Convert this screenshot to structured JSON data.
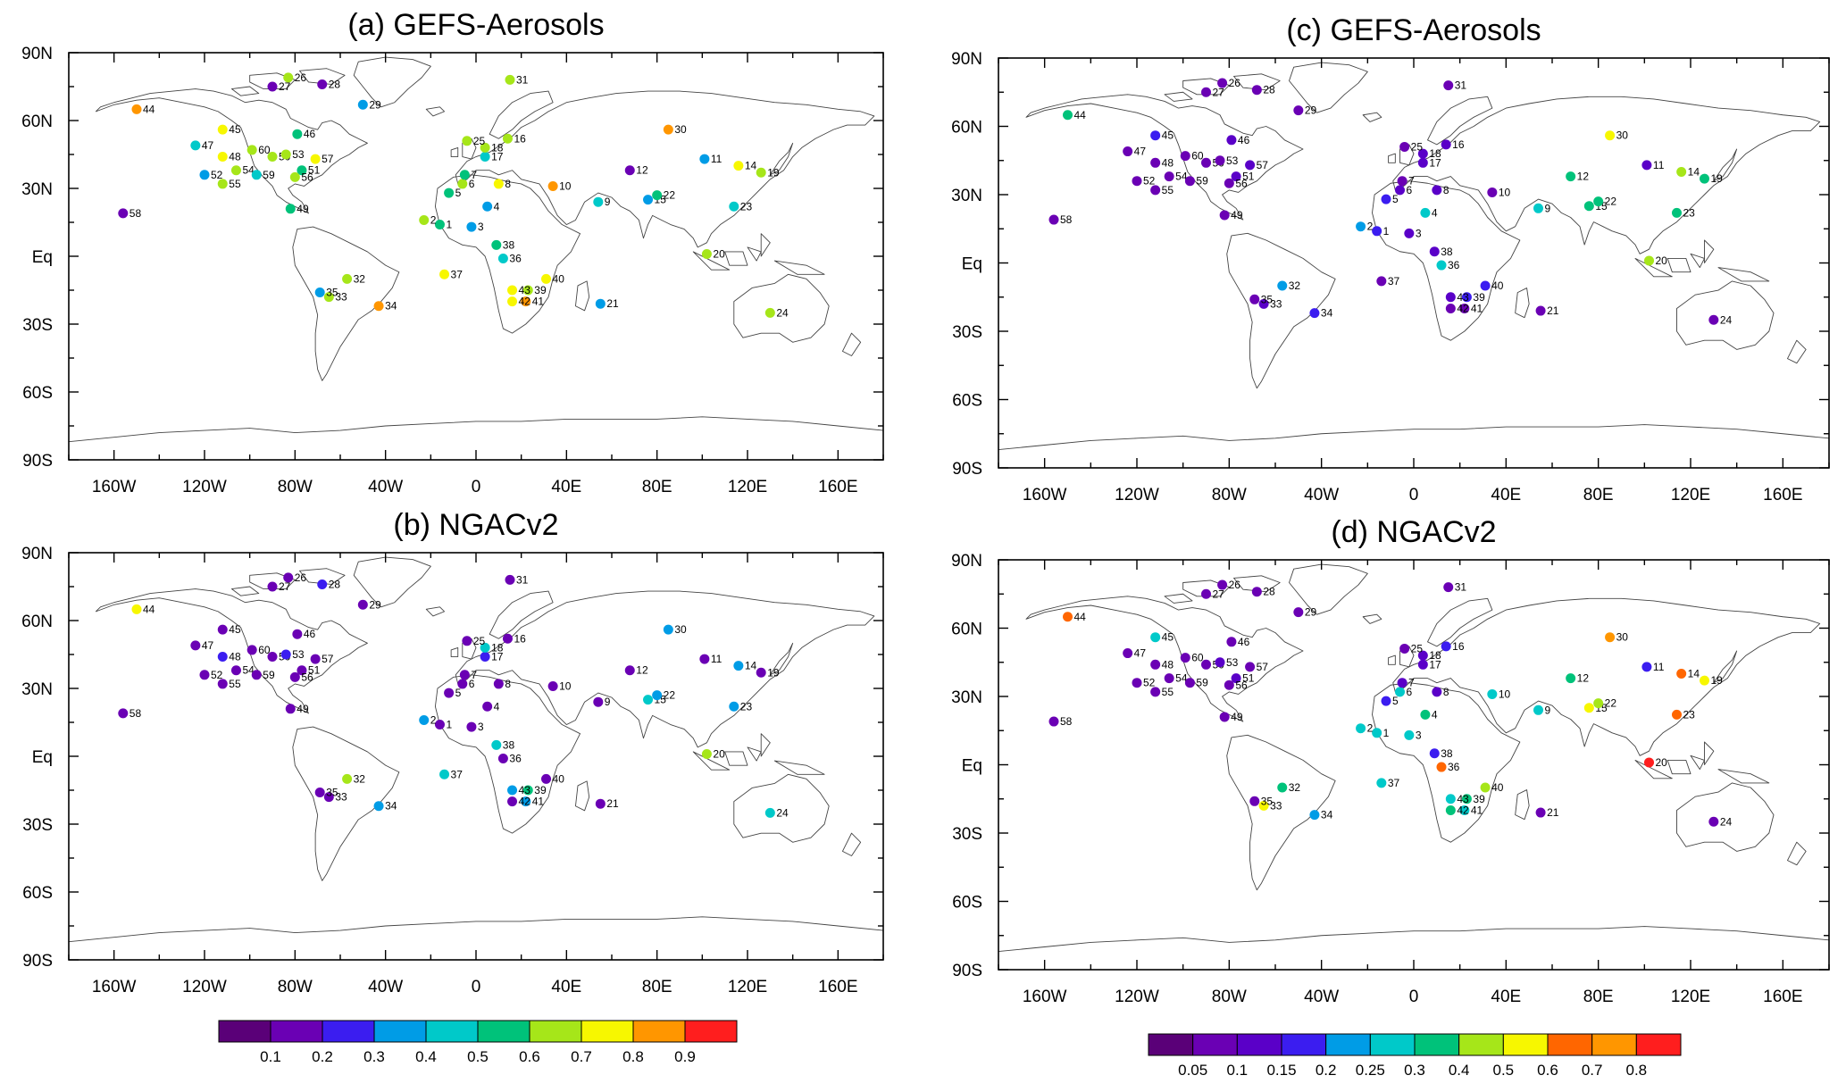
{
  "colors": {
    "scale_a": [
      "#5a0078",
      "#6a00b4",
      "#3b1df0",
      "#009ce6",
      "#00c9c9",
      "#00c27a",
      "#a6e619",
      "#f7f700",
      "#ff9600",
      "#ff1e1e"
    ],
    "scale_b": [
      "#5a0078",
      "#6a00b4",
      "#5a00c8",
      "#3b1df0",
      "#009ce6",
      "#00c9c9",
      "#00c27a",
      "#a6e619",
      "#f7f700",
      "#ff6600",
      "#ff9600",
      "#ff1e1e"
    ],
    "coast": "#444444"
  },
  "axes": {
    "x_ticks": [
      "160W",
      "120W",
      "80W",
      "40W",
      "0",
      "40E",
      "80E",
      "120E",
      "160E"
    ],
    "x_values": [
      -160,
      -120,
      -80,
      -40,
      0,
      40,
      80,
      120,
      160
    ],
    "y_ticks": [
      "90N",
      "60N",
      "30N",
      "Eq",
      "30S",
      "60S",
      "90S"
    ],
    "y_values": [
      90,
      60,
      30,
      0,
      -30,
      -60,
      -90
    ],
    "xlim": [
      -180,
      180
    ],
    "ylim": [
      -90,
      90
    ]
  },
  "colorbars": [
    {
      "labels": [
        "0.1",
        "0.2",
        "0.3",
        "0.4",
        "0.5",
        "0.6",
        "0.7",
        "0.8",
        "0.9"
      ],
      "scale": "scale_a"
    },
    {
      "labels": [
        "0.05",
        "0.1",
        "0.15",
        "0.2",
        "0.25",
        "0.3",
        "0.4",
        "0.5",
        "0.6",
        "0.7",
        "0.8"
      ],
      "scale": "scale_b"
    }
  ],
  "stations": [
    {
      "id": "1",
      "lon": -16,
      "lat": 14
    },
    {
      "id": "2",
      "lon": -23,
      "lat": 16
    },
    {
      "id": "3",
      "lon": -2,
      "lat": 13
    },
    {
      "id": "4",
      "lon": 5,
      "lat": 22
    },
    {
      "id": "5",
      "lon": -12,
      "lat": 28
    },
    {
      "id": "6",
      "lon": -6,
      "lat": 32
    },
    {
      "id": "7",
      "lon": -5,
      "lat": 36
    },
    {
      "id": "8",
      "lon": 10,
      "lat": 32
    },
    {
      "id": "9",
      "lon": 54,
      "lat": 24
    },
    {
      "id": "10",
      "lon": 34,
      "lat": 31
    },
    {
      "id": "11",
      "lon": 101,
      "lat": 43
    },
    {
      "id": "12",
      "lon": 68,
      "lat": 38
    },
    {
      "id": "14",
      "lon": 116,
      "lat": 40
    },
    {
      "id": "15",
      "lon": 76,
      "lat": 25
    },
    {
      "id": "16",
      "lon": 14,
      "lat": 52
    },
    {
      "id": "17",
      "lon": 4,
      "lat": 44
    },
    {
      "id": "18",
      "lon": 4,
      "lat": 48
    },
    {
      "id": "19",
      "lon": 126,
      "lat": 37
    },
    {
      "id": "20",
      "lon": 102,
      "lat": 1
    },
    {
      "id": "21",
      "lon": 55,
      "lat": -21
    },
    {
      "id": "22",
      "lon": 80,
      "lat": 27
    },
    {
      "id": "23",
      "lon": 114,
      "lat": 22
    },
    {
      "id": "24",
      "lon": 130,
      "lat": -25
    },
    {
      "id": "25",
      "lon": -4,
      "lat": 51
    },
    {
      "id": "26",
      "lon": -83,
      "lat": 79
    },
    {
      "id": "27",
      "lon": -90,
      "lat": 75
    },
    {
      "id": "28",
      "lon": -68,
      "lat": 76
    },
    {
      "id": "29",
      "lon": -50,
      "lat": 67
    },
    {
      "id": "30",
      "lon": 85,
      "lat": 56
    },
    {
      "id": "31",
      "lon": 15,
      "lat": 78
    },
    {
      "id": "32",
      "lon": -57,
      "lat": -10
    },
    {
      "id": "33",
      "lon": -65,
      "lat": -18
    },
    {
      "id": "34",
      "lon": -43,
      "lat": -22
    },
    {
      "id": "35",
      "lon": -69,
      "lat": -16
    },
    {
      "id": "36",
      "lon": 12,
      "lat": -1
    },
    {
      "id": "37",
      "lon": -14,
      "lat": -8
    },
    {
      "id": "38",
      "lon": 9,
      "lat": 5
    },
    {
      "id": "39",
      "lon": 23,
      "lat": -15
    },
    {
      "id": "40",
      "lon": 31,
      "lat": -10
    },
    {
      "id": "41",
      "lon": 22,
      "lat": -20
    },
    {
      "id": "42",
      "lon": 16,
      "lat": -20
    },
    {
      "id": "43",
      "lon": 16,
      "lat": -15
    },
    {
      "id": "44",
      "lon": -150,
      "lat": 65
    },
    {
      "id": "45",
      "lon": -112,
      "lat": 56
    },
    {
      "id": "46",
      "lon": -79,
      "lat": 54
    },
    {
      "id": "47",
      "lon": -124,
      "lat": 49
    },
    {
      "id": "48",
      "lon": -112,
      "lat": 44
    },
    {
      "id": "49",
      "lon": -82,
      "lat": 21
    },
    {
      "id": "50",
      "lon": -90,
      "lat": 44
    },
    {
      "id": "51",
      "lon": -77,
      "lat": 38
    },
    {
      "id": "52",
      "lon": -120,
      "lat": 36
    },
    {
      "id": "53",
      "lon": -84,
      "lat": 45
    },
    {
      "id": "54",
      "lon": -106,
      "lat": 38
    },
    {
      "id": "55",
      "lon": -112,
      "lat": 32
    },
    {
      "id": "56",
      "lon": -80,
      "lat": 35
    },
    {
      "id": "57",
      "lon": -71,
      "lat": 43
    },
    {
      "id": "58",
      "lon": -156,
      "lat": 19
    },
    {
      "id": "59",
      "lon": -97,
      "lat": 36
    },
    {
      "id": "60",
      "lon": -99,
      "lat": 47
    }
  ],
  "chart_data": [
    {
      "type": "scatter",
      "title": "(a) GEFS-Aerosols",
      "scale": "scale_a",
      "values": {
        "1": 0.55,
        "2": 0.65,
        "3": 0.35,
        "4": 0.35,
        "5": 0.55,
        "6": 0.65,
        "7": 0.55,
        "8": 0.75,
        "9": 0.45,
        "10": 0.85,
        "11": 0.35,
        "12": 0.15,
        "14": 0.75,
        "15": 0.35,
        "16": 0.65,
        "17": 0.45,
        "18": 0.65,
        "19": 0.65,
        "20": 0.65,
        "21": 0.35,
        "22": 0.55,
        "23": 0.45,
        "24": 0.65,
        "25": 0.65,
        "26": 0.65,
        "27": 0.15,
        "28": 0.15,
        "29": 0.35,
        "30": 0.85,
        "31": 0.65,
        "32": 0.65,
        "33": 0.65,
        "34": 0.85,
        "35": 0.35,
        "36": 0.45,
        "37": 0.75,
        "38": 0.55,
        "39": 0.65,
        "40": 0.75,
        "41": 0.85,
        "42": 0.75,
        "43": 0.75,
        "44": 0.85,
        "45": 0.75,
        "46": 0.55,
        "47": 0.45,
        "48": 0.75,
        "49": 0.55,
        "50": 0.65,
        "51": 0.55,
        "52": 0.35,
        "53": 0.65,
        "54": 0.65,
        "55": 0.65,
        "56": 0.65,
        "57": 0.75,
        "58": 0.15,
        "59": 0.45,
        "60": 0.65
      }
    },
    {
      "type": "scatter",
      "title": "(b) NGACv2",
      "scale": "scale_a",
      "values": {
        "1": 0.15,
        "2": 0.35,
        "3": 0.15,
        "4": 0.15,
        "5": 0.15,
        "6": 0.15,
        "7": 0.15,
        "8": 0.15,
        "9": 0.15,
        "10": 0.15,
        "11": 0.15,
        "12": 0.15,
        "14": 0.35,
        "15": 0.45,
        "16": 0.15,
        "17": 0.25,
        "18": 0.45,
        "19": 0.15,
        "20": 0.65,
        "21": 0.15,
        "22": 0.35,
        "23": 0.35,
        "24": 0.45,
        "25": 0.15,
        "26": 0.15,
        "27": 0.15,
        "28": 0.25,
        "29": 0.15,
        "30": 0.35,
        "31": 0.15,
        "32": 0.65,
        "33": 0.15,
        "34": 0.35,
        "35": 0.15,
        "36": 0.15,
        "37": 0.45,
        "38": 0.45,
        "39": 0.55,
        "40": 0.15,
        "41": 0.35,
        "42": 0.15,
        "43": 0.35,
        "44": 0.75,
        "45": 0.15,
        "46": 0.15,
        "47": 0.15,
        "48": 0.25,
        "49": 0.15,
        "50": 0.15,
        "51": 0.15,
        "52": 0.15,
        "53": 0.25,
        "54": 0.15,
        "55": 0.15,
        "56": 0.15,
        "57": 0.15,
        "58": 0.15,
        "59": 0.15,
        "60": 0.15
      }
    },
    {
      "type": "scatter",
      "title": "(c) GEFS-Aerosols",
      "scale": "scale_b",
      "values": {
        "1": 0.18,
        "2": 0.22,
        "3": 0.12,
        "4": 0.28,
        "5": 0.18,
        "6": 0.12,
        "7": 0.08,
        "8": 0.12,
        "9": 0.28,
        "10": 0.08,
        "11": 0.12,
        "12": 0.35,
        "14": 0.45,
        "15": 0.35,
        "16": 0.12,
        "17": 0.12,
        "18": 0.12,
        "19": 0.35,
        "20": 0.45,
        "21": 0.08,
        "22": 0.35,
        "23": 0.35,
        "24": 0.08,
        "25": 0.08,
        "26": 0.08,
        "27": 0.08,
        "28": 0.08,
        "29": 0.08,
        "30": 0.55,
        "31": 0.08,
        "32": 0.22,
        "33": 0.12,
        "34": 0.18,
        "35": 0.08,
        "36": 0.28,
        "37": 0.08,
        "38": 0.12,
        "39": 0.18,
        "40": 0.18,
        "41": 0.08,
        "42": 0.08,
        "43": 0.12,
        "44": 0.35,
        "45": 0.18,
        "46": 0.12,
        "47": 0.08,
        "48": 0.08,
        "49": 0.08,
        "50": 0.08,
        "51": 0.12,
        "52": 0.08,
        "53": 0.08,
        "54": 0.08,
        "55": 0.08,
        "56": 0.08,
        "57": 0.12,
        "58": 0.08,
        "59": 0.08,
        "60": 0.08
      }
    },
    {
      "type": "scatter",
      "title": "(d) NGACv2",
      "scale": "scale_b",
      "values": {
        "1": 0.28,
        "2": 0.28,
        "3": 0.28,
        "4": 0.35,
        "5": 0.18,
        "6": 0.28,
        "7": 0.12,
        "8": 0.12,
        "9": 0.28,
        "10": 0.28,
        "11": 0.18,
        "12": 0.35,
        "14": 0.65,
        "15": 0.55,
        "16": 0.18,
        "17": 0.12,
        "18": 0.12,
        "19": 0.55,
        "20": 0.85,
        "21": 0.08,
        "22": 0.45,
        "23": 0.65,
        "24": 0.08,
        "25": 0.08,
        "26": 0.08,
        "27": 0.08,
        "28": 0.08,
        "29": 0.08,
        "30": 0.75,
        "31": 0.08,
        "32": 0.35,
        "33": 0.55,
        "34": 0.22,
        "35": 0.08,
        "36": 0.65,
        "37": 0.28,
        "38": 0.18,
        "39": 0.35,
        "40": 0.45,
        "41": 0.28,
        "42": 0.35,
        "43": 0.28,
        "44": 0.65,
        "45": 0.28,
        "46": 0.08,
        "47": 0.08,
        "48": 0.08,
        "49": 0.08,
        "50": 0.08,
        "51": 0.12,
        "52": 0.08,
        "53": 0.12,
        "54": 0.08,
        "55": 0.08,
        "56": 0.08,
        "57": 0.08,
        "58": 0.08,
        "59": 0.08,
        "60": 0.08
      }
    }
  ]
}
